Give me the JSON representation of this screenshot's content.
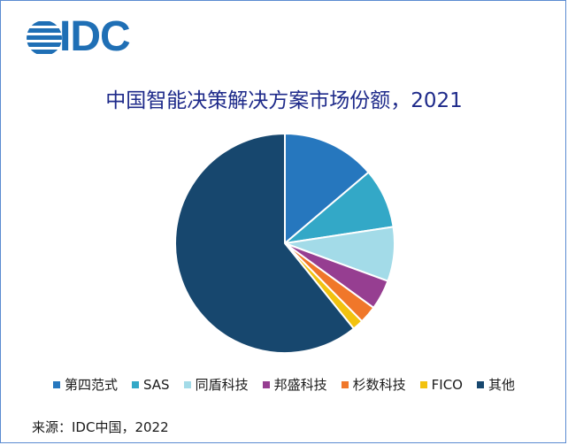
{
  "brand": {
    "name": "IDC",
    "color": "#1f6fb5"
  },
  "source_note": "来源：IDC中国，2022",
  "chart_data": {
    "type": "pie",
    "title": "中国智能决策解决方案市场份额，2021",
    "legend_placement": "bottom",
    "slices": [
      {
        "name": "第四范式",
        "value": 13.8,
        "color": "#2677be"
      },
      {
        "name": "SAS",
        "value": 8.8,
        "color": "#33a8c7"
      },
      {
        "name": "同盾科技",
        "value": 8.0,
        "color": "#a3dbe8"
      },
      {
        "name": "邦盛科技",
        "value": 4.4,
        "color": "#963e91"
      },
      {
        "name": "杉数科技",
        "value": 2.6,
        "color": "#f0772a"
      },
      {
        "name": "FICO",
        "value": 1.6,
        "color": "#f2c20f"
      },
      {
        "name": "其他",
        "value": 60.8,
        "color": "#17476e"
      }
    ]
  }
}
